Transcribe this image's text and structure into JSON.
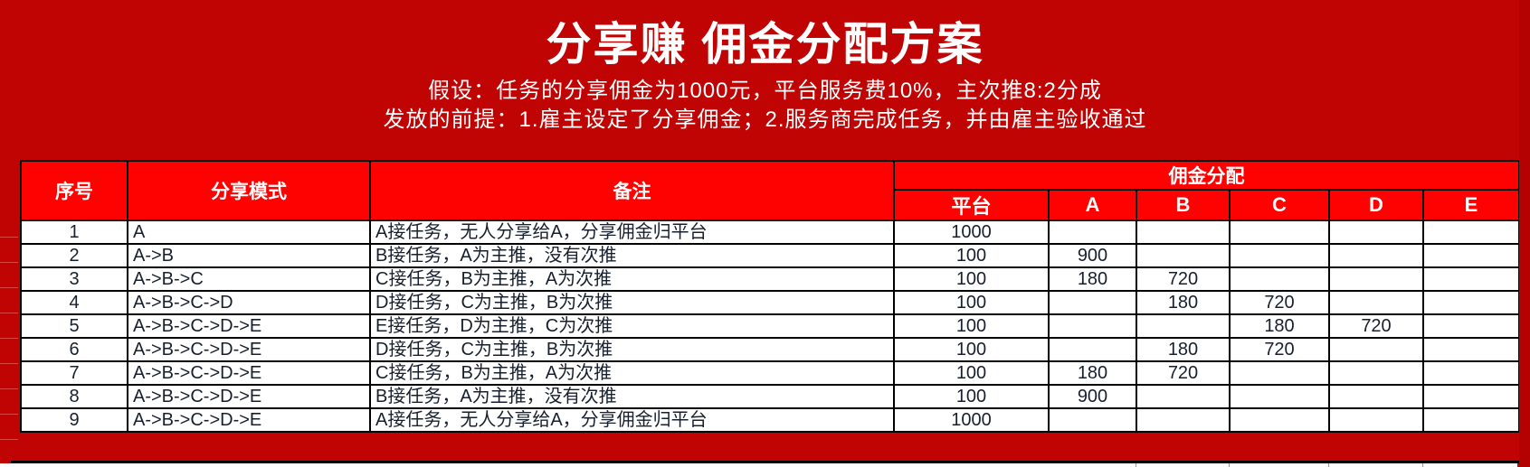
{
  "page": {
    "title": "分享赚 佣金分配方案",
    "subtitle1": "假设：任务的分享佣金为1000元，平台服务费10%，主次推8:2分成",
    "subtitle2": "发放的前提：1.雇主设定了分享佣金；2.服务商完成任务，并由雇主验收通过"
  },
  "colors": {
    "background": "#c00404",
    "header_cell": "#fe0202",
    "header_text": "#ffffff",
    "body_text": "#18202e",
    "border": "#000000"
  },
  "table": {
    "headers": {
      "index": "序号",
      "mode": "分享模式",
      "note": "备注",
      "group": "佣金分配",
      "sub": [
        "平台",
        "A",
        "B",
        "C",
        "D",
        "E"
      ]
    },
    "rows": [
      {
        "index": "1",
        "mode": "A",
        "note": "A接任务，无人分享给A，分享佣金归平台",
        "values": [
          "1000",
          "",
          "",
          "",
          "",
          ""
        ]
      },
      {
        "index": "2",
        "mode": "A->B",
        "note": "B接任务，A为主推，没有次推",
        "values": [
          "100",
          "900",
          "",
          "",
          "",
          ""
        ]
      },
      {
        "index": "3",
        "mode": "A->B->C",
        "note": "C接任务，B为主推，A为次推",
        "values": [
          "100",
          "180",
          "720",
          "",
          "",
          ""
        ]
      },
      {
        "index": "4",
        "mode": "A->B->C->D",
        "note": "D接任务，C为主推，B为次推",
        "values": [
          "100",
          "",
          "180",
          "720",
          "",
          ""
        ]
      },
      {
        "index": "5",
        "mode": "A->B->C->D->E",
        "note": "E接任务，D为主推，C为次推",
        "values": [
          "100",
          "",
          "",
          "180",
          "720",
          ""
        ]
      },
      {
        "index": "6",
        "mode": "A->B->C->D->E",
        "note": "D接任务，C为主推，B为次推",
        "values": [
          "100",
          "",
          "180",
          "720",
          "",
          ""
        ]
      },
      {
        "index": "7",
        "mode": "A->B->C->D->E",
        "note": "C接任务，B为主推，A为次推",
        "values": [
          "100",
          "180",
          "720",
          "",
          "",
          ""
        ]
      },
      {
        "index": "8",
        "mode": "A->B->C->D->E",
        "note": "B接任务，A为主推，没有次推",
        "values": [
          "100",
          "900",
          "",
          "",
          "",
          ""
        ]
      },
      {
        "index": "9",
        "mode": "A->B->C->D->E",
        "note": "A接任务，无人分享给A，分享佣金归平台",
        "values": [
          "1000",
          "",
          "",
          "",
          "",
          ""
        ]
      }
    ]
  }
}
